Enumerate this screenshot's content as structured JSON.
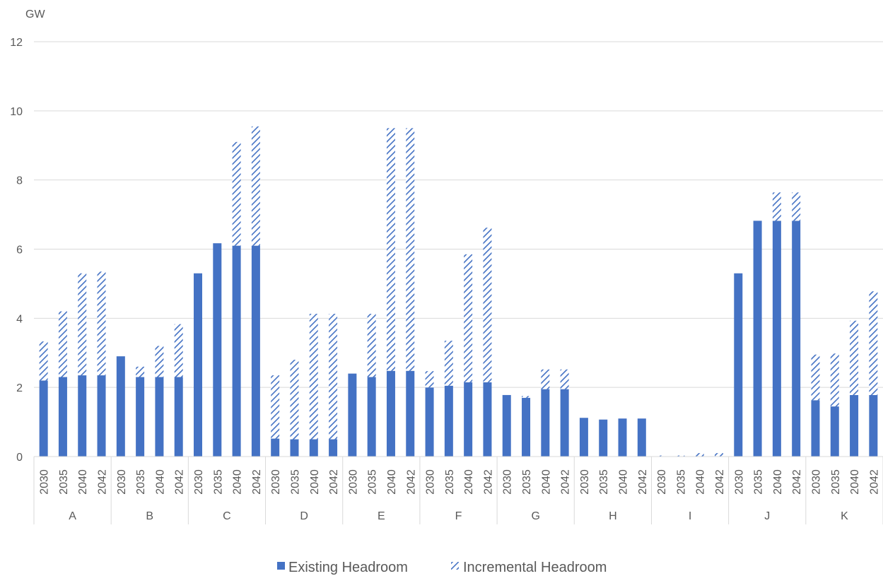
{
  "chart_data": {
    "type": "bar",
    "stacked": true,
    "ylabel": "GW",
    "ylim": [
      0,
      12
    ],
    "yticks": [
      0,
      2,
      4,
      6,
      8,
      10,
      12
    ],
    "grid": true,
    "legend_position": "bottom-center",
    "groups": [
      "A",
      "B",
      "C",
      "D",
      "E",
      "F",
      "G",
      "H",
      "I",
      "J",
      "K"
    ],
    "years": [
      "2030",
      "2035",
      "2040",
      "2042"
    ],
    "series": [
      {
        "name": "Existing Headroom",
        "color": "#4472C4",
        "pattern": "solid",
        "values": [
          [
            2.2,
            2.3,
            2.35,
            2.35
          ],
          [
            2.9,
            2.3,
            2.3,
            2.3
          ],
          [
            5.3,
            6.17,
            6.1,
            6.1
          ],
          [
            0.52,
            0.5,
            0.5,
            0.5
          ],
          [
            2.4,
            2.3,
            2.48,
            2.48
          ],
          [
            2.0,
            2.05,
            2.15,
            2.15
          ],
          [
            1.78,
            1.7,
            1.95,
            1.95
          ],
          [
            1.12,
            1.07,
            1.1,
            1.1
          ],
          [
            0.0,
            0.0,
            0.0,
            0.0
          ],
          [
            5.3,
            6.82,
            6.82,
            6.82
          ],
          [
            1.63,
            1.45,
            1.78,
            1.78
          ]
        ]
      },
      {
        "name": "Incremental Headroom",
        "color": "#4472C4",
        "pattern": "hatched",
        "values": [
          [
            1.13,
            1.9,
            2.95,
            3.0
          ],
          [
            0.0,
            0.3,
            0.9,
            1.53
          ],
          [
            0.0,
            0.0,
            3.0,
            3.45
          ],
          [
            1.83,
            2.3,
            3.63,
            3.63
          ],
          [
            0.0,
            1.83,
            7.02,
            7.02
          ],
          [
            0.47,
            1.3,
            3.7,
            4.47
          ],
          [
            0.0,
            0.05,
            0.57,
            0.57
          ],
          [
            0.0,
            0.0,
            0.0,
            0.0
          ],
          [
            0.03,
            0.03,
            0.1,
            0.1
          ],
          [
            0.0,
            0.0,
            0.82,
            0.82
          ],
          [
            1.32,
            1.53,
            2.15,
            3.0
          ]
        ]
      }
    ]
  }
}
